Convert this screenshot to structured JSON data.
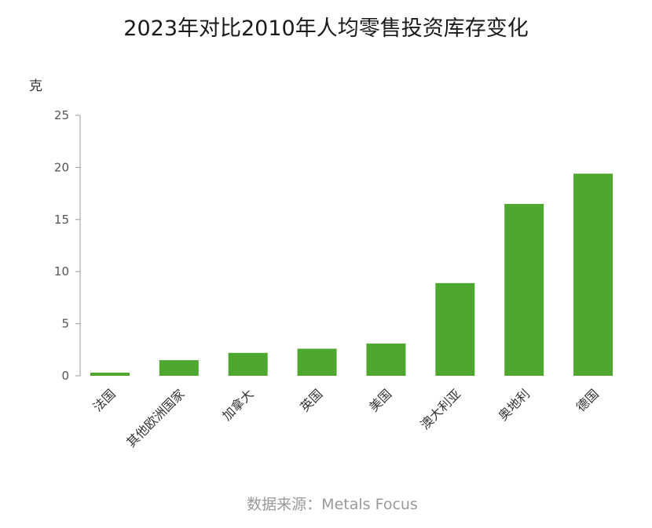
{
  "title": "2023年对比2010年人均零售投资库存变化",
  "source": "数据来源：Metals Focus",
  "colors": {
    "bar": "#4ea72e",
    "axis": "#999999"
  },
  "chart_data": {
    "type": "bar",
    "title": "2023年对比2010年人均零售投资库存变化",
    "ylabel": "克",
    "xlabel": "",
    "categories": [
      "法国",
      "其他欧洲国家",
      "加拿大",
      "英国",
      "美国",
      "澳大利亚",
      "奥地利",
      "德国"
    ],
    "values": [
      0.3,
      1.5,
      2.2,
      2.6,
      3.1,
      8.9,
      16.5,
      19.4
    ],
    "ylim": [
      0,
      25
    ],
    "yticks": [
      0,
      5,
      10,
      15,
      20,
      25
    ],
    "grid": false,
    "legend": "none"
  }
}
